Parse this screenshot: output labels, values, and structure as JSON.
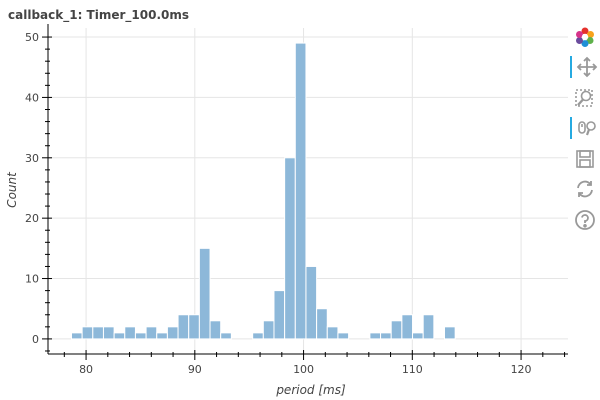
{
  "chart_data": {
    "type": "bar",
    "title": "callback_1: Timer_100.0ms",
    "xlabel": "period [ms]",
    "ylabel": "Count",
    "xlim": [
      76.5,
      124.5
    ],
    "ylim": [
      -2.5,
      51.5
    ],
    "bin_width": 0.98,
    "bins": [
      {
        "x0": 78.66,
        "count": 1
      },
      {
        "x0": 79.64,
        "count": 2
      },
      {
        "x0": 80.62,
        "count": 2
      },
      {
        "x0": 81.6,
        "count": 2
      },
      {
        "x0": 82.58,
        "count": 1
      },
      {
        "x0": 83.56,
        "count": 2
      },
      {
        "x0": 84.54,
        "count": 1
      },
      {
        "x0": 85.52,
        "count": 2
      },
      {
        "x0": 86.5,
        "count": 1
      },
      {
        "x0": 87.48,
        "count": 2
      },
      {
        "x0": 88.46,
        "count": 4
      },
      {
        "x0": 89.44,
        "count": 4
      },
      {
        "x0": 90.42,
        "count": 15
      },
      {
        "x0": 91.4,
        "count": 3
      },
      {
        "x0": 92.38,
        "count": 1
      },
      {
        "x0": 93.36,
        "count": 0
      },
      {
        "x0": 94.34,
        "count": 0
      },
      {
        "x0": 95.32,
        "count": 1
      },
      {
        "x0": 96.3,
        "count": 3
      },
      {
        "x0": 97.28,
        "count": 8
      },
      {
        "x0": 98.26,
        "count": 30
      },
      {
        "x0": 99.24,
        "count": 49
      },
      {
        "x0": 100.22,
        "count": 12
      },
      {
        "x0": 101.2,
        "count": 5
      },
      {
        "x0": 102.18,
        "count": 2
      },
      {
        "x0": 103.16,
        "count": 1
      },
      {
        "x0": 104.14,
        "count": 0
      },
      {
        "x0": 105.12,
        "count": 0
      },
      {
        "x0": 106.1,
        "count": 1
      },
      {
        "x0": 107.08,
        "count": 1
      },
      {
        "x0": 108.06,
        "count": 3
      },
      {
        "x0": 109.04,
        "count": 4
      },
      {
        "x0": 110.02,
        "count": 1
      },
      {
        "x0": 111.0,
        "count": 4
      },
      {
        "x0": 111.98,
        "count": 0
      },
      {
        "x0": 112.96,
        "count": 2
      }
    ],
    "x_ticks": [
      80,
      90,
      100,
      110,
      120
    ],
    "y_ticks": [
      0,
      10,
      20,
      30,
      40,
      50
    ],
    "grid": true,
    "bar_color": "#8db8d9",
    "bar_edge_color": "#ffffff"
  },
  "toolbar": {
    "tools": [
      {
        "icon": "bokeh-logo-icon",
        "active": false
      },
      {
        "icon": "pan-icon",
        "active": true
      },
      {
        "icon": "box-zoom-icon",
        "active": false
      },
      {
        "icon": "wheel-zoom-icon",
        "active": true
      },
      {
        "icon": "save-icon",
        "active": false
      },
      {
        "icon": "reset-icon",
        "active": false
      },
      {
        "icon": "help-icon",
        "active": false
      }
    ]
  }
}
